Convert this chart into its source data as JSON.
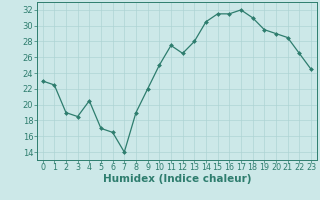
{
  "x": [
    0,
    1,
    2,
    3,
    4,
    5,
    6,
    7,
    8,
    9,
    10,
    11,
    12,
    13,
    14,
    15,
    16,
    17,
    18,
    19,
    20,
    21,
    22,
    23
  ],
  "y": [
    23.0,
    22.5,
    19.0,
    18.5,
    20.5,
    17.0,
    16.5,
    14.0,
    19.0,
    22.0,
    25.0,
    27.5,
    26.5,
    28.0,
    30.5,
    31.5,
    31.5,
    32.0,
    31.0,
    29.5,
    29.0,
    28.5,
    26.5,
    24.5
  ],
  "xlabel": "Humidex (Indice chaleur)",
  "ylim": [
    13,
    33
  ],
  "xlim": [
    -0.5,
    23.5
  ],
  "yticks": [
    14,
    16,
    18,
    20,
    22,
    24,
    26,
    28,
    30,
    32
  ],
  "xticks": [
    0,
    1,
    2,
    3,
    4,
    5,
    6,
    7,
    8,
    9,
    10,
    11,
    12,
    13,
    14,
    15,
    16,
    17,
    18,
    19,
    20,
    21,
    22,
    23
  ],
  "line_color": "#2e7d6e",
  "marker_color": "#2e7d6e",
  "bg_color": "#cce8e8",
  "grid_color": "#aed4d4",
  "axis_color": "#2e7d6e",
  "tick_label_color": "#2e7d6e",
  "xlabel_color": "#2e7d6e",
  "xlabel_fontsize": 7.5,
  "tick_fontsize": 6.0,
  "xtick_fontsize": 5.8
}
